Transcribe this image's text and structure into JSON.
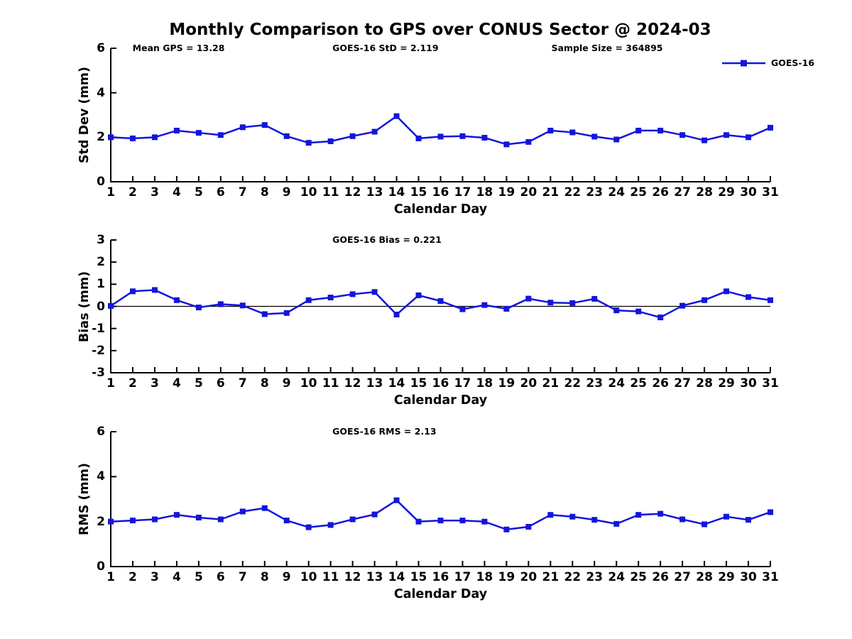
{
  "title": "Monthly Comparison to GPS over CONUS Sector @ 2024-03",
  "colors": {
    "line": "#1414dc",
    "axis": "#000000",
    "background": "#ffffff"
  },
  "legend": {
    "label": "GOES-16"
  },
  "chart_data": [
    {
      "type": "line",
      "ylabel": "Std Dev (mm)",
      "xlabel": "Calendar Day",
      "annotations": [
        "Mean GPS = 13.28",
        "GOES-16 StD = 2.119",
        "Sample Size = 364895"
      ],
      "x": [
        1,
        2,
        3,
        4,
        5,
        6,
        7,
        8,
        9,
        10,
        11,
        12,
        13,
        14,
        15,
        16,
        17,
        18,
        19,
        20,
        21,
        22,
        23,
        24,
        25,
        26,
        27,
        28,
        29,
        30,
        31
      ],
      "series": [
        {
          "name": "GOES-16",
          "marker": "square",
          "values": [
            2.0,
            1.95,
            2.0,
            2.3,
            2.2,
            2.1,
            2.45,
            2.55,
            2.05,
            1.75,
            1.82,
            2.05,
            2.25,
            2.95,
            1.95,
            2.03,
            2.05,
            1.98,
            1.68,
            1.79,
            2.3,
            2.22,
            2.03,
            1.9,
            2.3,
            2.3,
            2.1,
            1.86,
            2.1,
            2.0,
            2.43
          ]
        }
      ],
      "ylim": [
        0,
        6
      ],
      "yticks": [
        0,
        2,
        4,
        6
      ],
      "grid": false,
      "zero_line": false,
      "legend_position": "outside-top-right"
    },
    {
      "type": "line",
      "ylabel": "Bias (mm)",
      "xlabel": "Calendar Day",
      "annotations": [
        "GOES-16 Bias = 0.221"
      ],
      "x": [
        1,
        2,
        3,
        4,
        5,
        6,
        7,
        8,
        9,
        10,
        11,
        12,
        13,
        14,
        15,
        16,
        17,
        18,
        19,
        20,
        21,
        22,
        23,
        24,
        25,
        26,
        27,
        28,
        29,
        30,
        31
      ],
      "series": [
        {
          "name": "GOES-16",
          "marker": "square",
          "values": [
            0.02,
            0.68,
            0.74,
            0.28,
            -0.05,
            0.1,
            0.04,
            -0.35,
            -0.3,
            0.28,
            0.4,
            0.55,
            0.65,
            -0.37,
            0.5,
            0.24,
            -0.13,
            0.06,
            -0.11,
            0.35,
            0.17,
            0.15,
            0.34,
            -0.18,
            -0.23,
            -0.5,
            0.03,
            0.28,
            0.68,
            0.42,
            0.28
          ]
        }
      ],
      "ylim": [
        -3,
        3
      ],
      "yticks": [
        -3,
        -2,
        -1,
        0,
        1,
        2,
        3
      ],
      "grid": false,
      "zero_line": true
    },
    {
      "type": "line",
      "ylabel": "RMS (mm)",
      "xlabel": "Calendar Day",
      "annotations": [
        "GOES-16 RMS = 2.13"
      ],
      "x": [
        1,
        2,
        3,
        4,
        5,
        6,
        7,
        8,
        9,
        10,
        11,
        12,
        13,
        14,
        15,
        16,
        17,
        18,
        19,
        20,
        21,
        22,
        23,
        24,
        25,
        26,
        27,
        28,
        29,
        30,
        31
      ],
      "series": [
        {
          "name": "GOES-16",
          "marker": "square",
          "values": [
            2.0,
            2.05,
            2.1,
            2.3,
            2.18,
            2.1,
            2.45,
            2.6,
            2.05,
            1.75,
            1.85,
            2.1,
            2.32,
            2.95,
            2.0,
            2.05,
            2.05,
            2.0,
            1.65,
            1.77,
            2.3,
            2.22,
            2.08,
            1.9,
            2.3,
            2.35,
            2.1,
            1.88,
            2.22,
            2.08,
            2.42
          ]
        }
      ],
      "ylim": [
        0,
        6
      ],
      "yticks": [
        0,
        2,
        4,
        6
      ],
      "grid": false,
      "zero_line": false
    }
  ]
}
